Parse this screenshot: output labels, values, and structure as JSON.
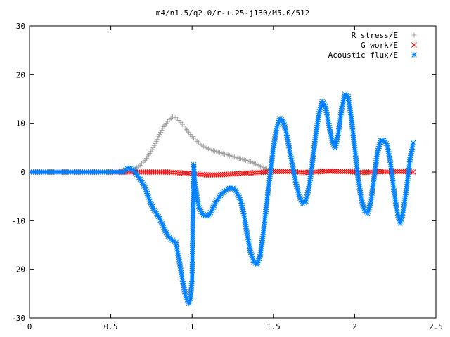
{
  "chart_data": {
    "type": "scatter",
    "title": "m4/n1.5/q2.0/r-+.25-j130/M5.0/512",
    "xlabel": "",
    "ylabel": "",
    "xlim": [
      0,
      2.5
    ],
    "ylim": [
      -30,
      30
    ],
    "x_ticks": [
      0,
      0.5,
      1,
      1.5,
      2,
      2.5
    ],
    "x_tick_labels": [
      "0",
      "0.5",
      "1",
      "1.5",
      "2",
      "2.5"
    ],
    "y_ticks": [
      -30,
      -20,
      -10,
      0,
      10,
      20,
      30
    ],
    "y_tick_labels": [
      "-30",
      "-20",
      "-10",
      "0",
      "10",
      "20",
      "30"
    ],
    "grid": false,
    "legend_position": "top-right",
    "series": [
      {
        "name": "R stress/E",
        "marker": "plus",
        "color": "#a0a0a0",
        "x": [
          0.0,
          0.1,
          0.2,
          0.3,
          0.4,
          0.5,
          0.6,
          0.62,
          0.64,
          0.66,
          0.68,
          0.7,
          0.72,
          0.74,
          0.76,
          0.78,
          0.8,
          0.82,
          0.84,
          0.86,
          0.88,
          0.9,
          0.92,
          0.94,
          0.96,
          0.98,
          1.0,
          1.02,
          1.04,
          1.06,
          1.08,
          1.1,
          1.12,
          1.14,
          1.16,
          1.18,
          1.2,
          1.22,
          1.24,
          1.26,
          1.28,
          1.3,
          1.32,
          1.34,
          1.36,
          1.38,
          1.4,
          1.42,
          1.44,
          1.46,
          1.5,
          1.6,
          1.7,
          1.8,
          1.9,
          2.0,
          2.1,
          2.2,
          2.3,
          2.36
        ],
        "y": [
          0,
          0,
          0,
          0,
          0,
          0,
          0.1,
          0.3,
          0.6,
          0.9,
          1.4,
          2.0,
          2.8,
          3.8,
          5.0,
          6.3,
          7.7,
          9.0,
          10.0,
          10.8,
          11.3,
          11.2,
          10.6,
          9.8,
          9.0,
          8.1,
          7.3,
          6.6,
          6.0,
          5.5,
          5.1,
          4.8,
          4.5,
          4.3,
          4.1,
          3.9,
          3.7,
          3.5,
          3.3,
          3.1,
          2.9,
          2.7,
          2.5,
          2.3,
          2.1,
          1.8,
          1.5,
          1.2,
          0.9,
          0.6,
          0.3,
          0.2,
          0.2,
          0.3,
          0.2,
          0.3,
          0.2,
          0.2,
          0.3,
          0.2
        ]
      },
      {
        "name": "G work/E",
        "marker": "cross",
        "color": "#ff0000",
        "x": [
          0.0,
          0.1,
          0.2,
          0.3,
          0.4,
          0.5,
          0.6,
          0.65,
          0.7,
          0.75,
          0.8,
          0.85,
          0.9,
          0.95,
          1.0,
          1.05,
          1.1,
          1.15,
          1.2,
          1.25,
          1.3,
          1.35,
          1.4,
          1.45,
          1.5,
          1.55,
          1.6,
          1.65,
          1.7,
          1.75,
          1.8,
          1.85,
          1.9,
          1.95,
          2.0,
          2.05,
          2.1,
          2.15,
          2.2,
          2.25,
          2.3,
          2.36
        ],
        "y": [
          0,
          0,
          0,
          0,
          0,
          0,
          0,
          0,
          0,
          0,
          0,
          0,
          -0.1,
          -0.2,
          -0.3,
          -0.5,
          -0.6,
          -0.6,
          -0.5,
          -0.4,
          -0.3,
          -0.2,
          -0.1,
          0,
          0.1,
          0.1,
          0.1,
          0,
          -0.1,
          0,
          0.1,
          0.2,
          0.1,
          0.1,
          0,
          -0.1,
          0,
          0.1,
          0,
          0.1,
          0.1,
          0
        ]
      },
      {
        "name": "Acoustic flux/E",
        "marker": "star",
        "color": "#0080ff",
        "x": [
          0.0,
          0.1,
          0.2,
          0.3,
          0.4,
          0.5,
          0.58,
          0.6,
          0.62,
          0.64,
          0.66,
          0.68,
          0.7,
          0.72,
          0.74,
          0.76,
          0.78,
          0.8,
          0.82,
          0.84,
          0.86,
          0.88,
          0.9,
          0.92,
          0.94,
          0.96,
          0.98,
          0.99,
          1.0,
          1.01,
          1.02,
          1.04,
          1.06,
          1.08,
          1.1,
          1.12,
          1.14,
          1.16,
          1.18,
          1.2,
          1.22,
          1.24,
          1.26,
          1.28,
          1.3,
          1.32,
          1.34,
          1.36,
          1.38,
          1.4,
          1.42,
          1.44,
          1.46,
          1.48,
          1.5,
          1.52,
          1.54,
          1.56,
          1.58,
          1.6,
          1.62,
          1.64,
          1.66,
          1.68,
          1.7,
          1.72,
          1.74,
          1.76,
          1.78,
          1.8,
          1.82,
          1.84,
          1.86,
          1.88,
          1.9,
          1.92,
          1.94,
          1.96,
          1.98,
          2.0,
          2.02,
          2.04,
          2.06,
          2.08,
          2.1,
          2.12,
          2.14,
          2.16,
          2.18,
          2.2,
          2.22,
          2.24,
          2.26,
          2.28,
          2.3,
          2.32,
          2.34,
          2.36
        ],
        "y": [
          0,
          0,
          0,
          0,
          0,
          0,
          0,
          0.8,
          0.7,
          0.4,
          -0.5,
          -1.5,
          -2.5,
          -4.0,
          -6.0,
          -7.5,
          -8.5,
          -9.5,
          -11.0,
          -12.5,
          -13.5,
          -14.0,
          -14.5,
          -18.0,
          -22.0,
          -25.5,
          -27.0,
          -26.0,
          -22.0,
          1.5,
          -3.0,
          -7.0,
          -8.5,
          -9.0,
          -9.0,
          -8.0,
          -6.5,
          -5.5,
          -4.5,
          -4.0,
          -3.5,
          -3.2,
          -3.5,
          -4.5,
          -6.0,
          -9.0,
          -13.0,
          -16.5,
          -18.5,
          -19.0,
          -17.0,
          -12.0,
          -6.0,
          -0.5,
          5.0,
          9.0,
          11.0,
          10.5,
          8.0,
          4.5,
          1.0,
          -2.5,
          -5.0,
          -6.5,
          -6.0,
          -3.0,
          2.0,
          7.5,
          12.0,
          14.5,
          13.5,
          10.0,
          6.5,
          5.0,
          8.0,
          13.0,
          16.0,
          15.5,
          11.0,
          5.0,
          -1.0,
          -5.5,
          -8.0,
          -8.5,
          -6.0,
          -1.0,
          4.0,
          6.5,
          6.5,
          5.5,
          2.0,
          -3.5,
          -8.0,
          -10.5,
          -8.0,
          -3.0,
          2.5,
          6.0
        ]
      }
    ]
  }
}
